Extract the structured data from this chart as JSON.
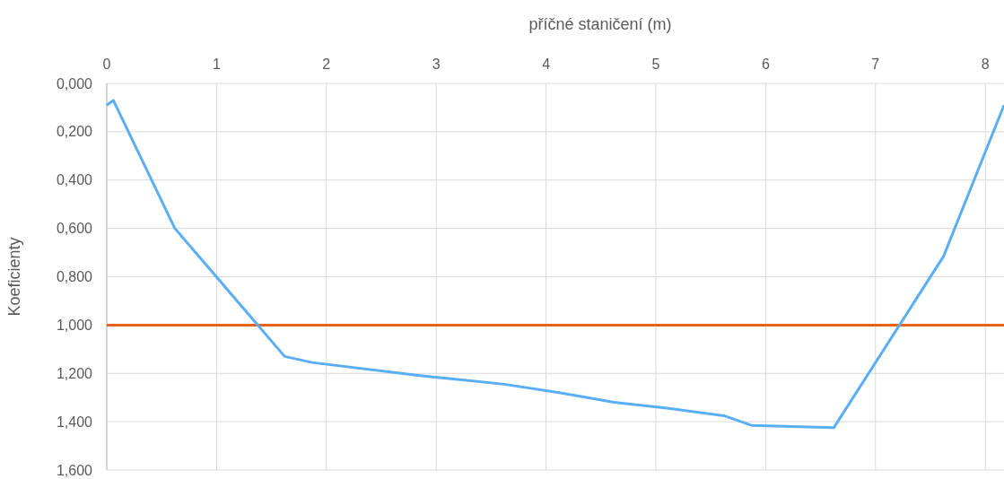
{
  "chart_data": {
    "type": "line",
    "xlabel": "příčné staničení (m)",
    "ylabel": "Koeficienty",
    "xlim": [
      0,
      8.17
    ],
    "xticks": [
      0,
      1,
      2,
      3,
      4,
      5,
      6,
      7,
      8
    ],
    "ylim": [
      1.6,
      0
    ],
    "yticks": [
      {
        "value": 0,
        "label": "0,000"
      },
      {
        "value": 0.2,
        "label": "0,200"
      },
      {
        "value": 0.4,
        "label": "0,400"
      },
      {
        "value": 0.6,
        "label": "0,600"
      },
      {
        "value": 0.8,
        "label": "0,800"
      },
      {
        "value": 1,
        "label": "1,000"
      },
      {
        "value": 1.2,
        "label": "1,200"
      },
      {
        "value": 1.4,
        "label": "1,400"
      },
      {
        "value": 1.6,
        "label": "1,600"
      }
    ],
    "grid": true,
    "series": [
      {
        "color": "#5aaef5",
        "x": [
          0,
          0.06,
          0.62,
          1.62,
          1.87,
          2.87,
          3.62,
          4.12,
          4.62,
          5.12,
          5.62,
          5.87,
          6.62,
          7.62,
          8.17
        ],
        "values": [
          0.09,
          0.07,
          0.6,
          1.13,
          1.155,
          1.21,
          1.245,
          1.28,
          1.32,
          1.345,
          1.375,
          1.415,
          1.425,
          0.715,
          0.09
        ]
      }
    ],
    "ref_lines": [
      {
        "axis": "y",
        "value": 1,
        "color": "#e8621e"
      }
    ]
  }
}
